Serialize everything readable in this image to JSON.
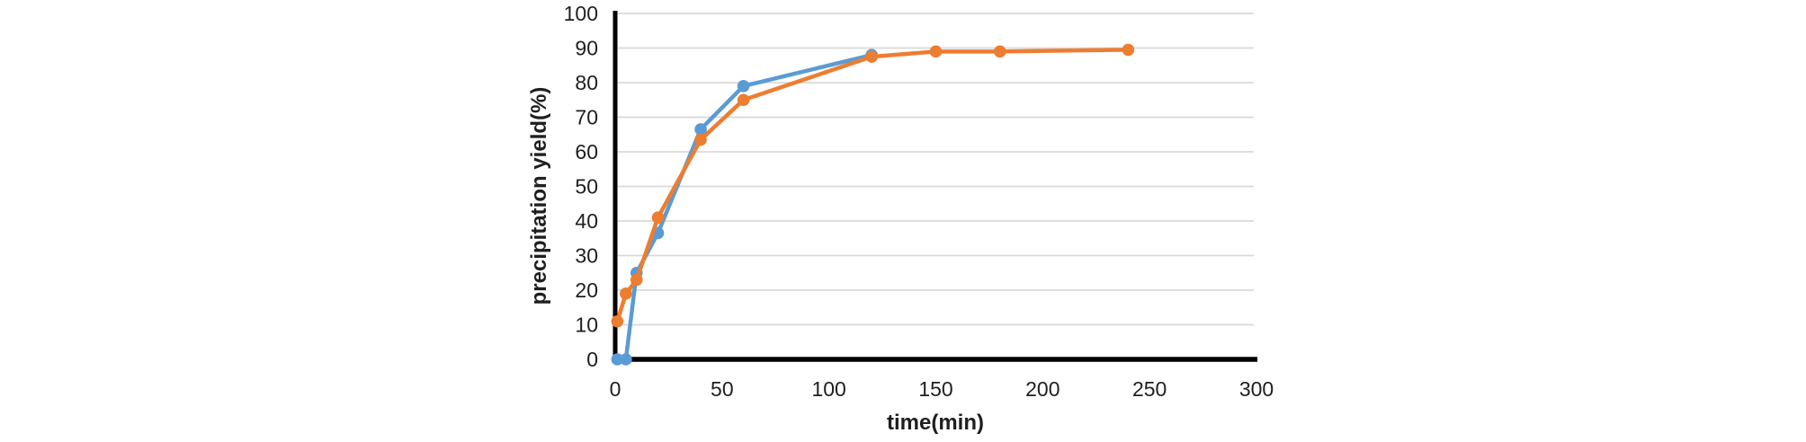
{
  "page": {
    "background": "#ffffff"
  },
  "chart_data": {
    "type": "line",
    "title": "",
    "xlabel": "time(min)",
    "ylabel": "precipitation yield(%)",
    "xlim": [
      0,
      300
    ],
    "ylim": [
      0,
      100
    ],
    "x_ticks": [
      0,
      50,
      100,
      150,
      200,
      250,
      300
    ],
    "y_ticks": [
      0,
      10,
      20,
      30,
      40,
      50,
      60,
      70,
      80,
      90,
      100
    ],
    "grid": "horizontal-only",
    "legend": "none",
    "colors": {
      "gridline": "#d9d9d9",
      "axis": "#000000",
      "tick_label": "#1f1f1f",
      "series_blue": "#5b9bd5",
      "series_orange": "#ed7d31"
    },
    "series": [
      {
        "name": "series-1-blue",
        "color": "#5b9bd5",
        "marker": "circle",
        "x": [
          1,
          5,
          10,
          20,
          40,
          60,
          120
        ],
        "y": [
          0,
          0,
          25,
          36.5,
          66.5,
          79,
          88
        ]
      },
      {
        "name": "series-2-orange",
        "color": "#ed7d31",
        "marker": "circle",
        "x": [
          1,
          5,
          10,
          20,
          40,
          60,
          120,
          150,
          180,
          240
        ],
        "y": [
          11,
          19,
          23,
          41,
          63.5,
          75,
          87.5,
          89,
          89,
          89.5
        ]
      }
    ]
  }
}
